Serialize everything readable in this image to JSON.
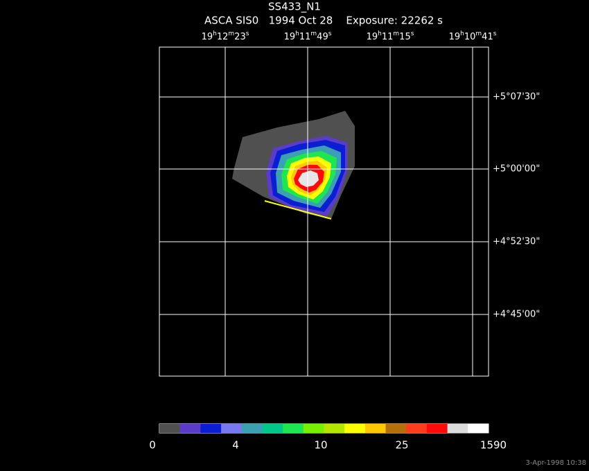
{
  "header": {
    "title": "SS433_N1",
    "subtitle": "ASCA SIS0   1994 Oct 28    Exposure: 22262 s"
  },
  "ra_labels": [
    [
      "19",
      "h",
      "12",
      "m",
      "23",
      "s"
    ],
    [
      "19",
      "h",
      "11",
      "m",
      "49",
      "s"
    ],
    [
      "19",
      "h",
      "11",
      "m",
      "15",
      "s"
    ],
    [
      "19",
      "h",
      "10",
      "m",
      "41",
      "s"
    ]
  ],
  "dec_labels": [
    "+5°07'30\"",
    "+5°00'00\"",
    "+4°52'30\"",
    "+4°45'00\""
  ],
  "colorbar": {
    "colors": [
      "#505050",
      "#5a3cc8",
      "#0a1ed2",
      "#7878f0",
      "#3ca0b4",
      "#00c88c",
      "#1ee650",
      "#78f000",
      "#b4e600",
      "#ffff00",
      "#ffc800",
      "#b46e0a",
      "#ff3c1e",
      "#ff0a0a",
      "#dcdcdc",
      "#ffffff"
    ],
    "labels": [
      "0",
      "4",
      "10",
      "25",
      "1590"
    ]
  },
  "footer": {
    "timestamp": "3-Apr-1998 10:38"
  }
}
